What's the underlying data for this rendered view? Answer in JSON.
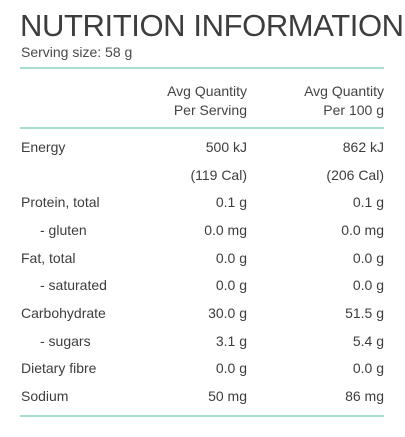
{
  "title": "NUTRITION INFORMATION",
  "serving": "Serving size: 58 g",
  "headers": {
    "col1_line1": "Avg Quantity",
    "col1_line2": "Per Serving",
    "col2_line1": "Avg Quantity",
    "col2_line2": "Per 100 g"
  },
  "rows": [
    {
      "label": "Energy",
      "per_serving": "500 kJ",
      "per_100g": "862 kJ"
    },
    {
      "label": "",
      "per_serving": "(119 Cal)",
      "per_100g": "(206 Cal)"
    },
    {
      "label": "Protein, total",
      "per_serving": "0.1 g",
      "per_100g": "0.1 g"
    },
    {
      "label": "- gluten",
      "per_serving": "0.0 mg",
      "per_100g": "0.0 mg"
    },
    {
      "label": "Fat, total",
      "per_serving": "0.0 g",
      "per_100g": "0.0 g"
    },
    {
      "label": "- saturated",
      "per_serving": "0.0 g",
      "per_100g": "0.0 g"
    },
    {
      "label": "Carbohydrate",
      "per_serving": "30.0 g",
      "per_100g": "51.5 g"
    },
    {
      "label": "- sugars",
      "per_serving": "3.1 g",
      "per_100g": "5.4 g"
    },
    {
      "label": "Dietary fibre",
      "per_serving": "0.0 g",
      "per_100g": "0.0 g"
    },
    {
      "label": "Sodium",
      "per_serving": "50 mg",
      "per_100g": "86 mg"
    }
  ],
  "colors": {
    "rule": "#a8ddd0",
    "text": "#3d3d3d"
  }
}
